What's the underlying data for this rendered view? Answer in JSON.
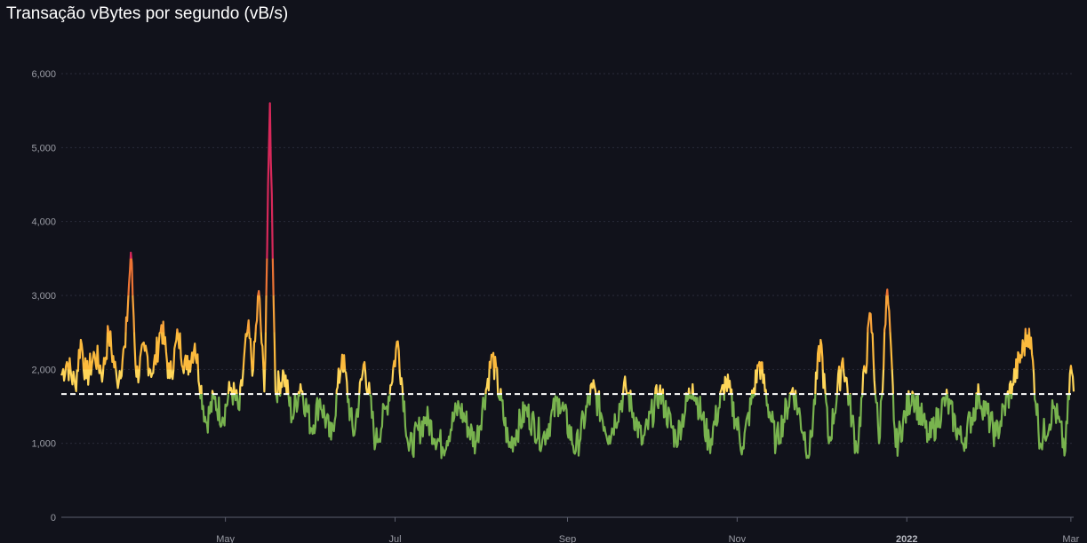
{
  "chart_data": {
    "type": "line",
    "title": "Transação vBytes por segundo (vB/s)",
    "xlabel": "",
    "ylabel": "",
    "ylim": [
      0,
      6000
    ],
    "yticks": [
      0,
      1000,
      2000,
      3000,
      4000,
      5000,
      6000
    ],
    "ytick_labels": [
      "0",
      "1,000",
      "2,000",
      "3,000",
      "4,000",
      "5,000",
      "6,000"
    ],
    "xlim": [
      "2021-03-03",
      "2022-03-02"
    ],
    "xticks": [
      {
        "date": "2021-05-01",
        "label": "May",
        "bold": false
      },
      {
        "date": "2021-07-01",
        "label": "Jul",
        "bold": false
      },
      {
        "date": "2021-09-01",
        "label": "Sep",
        "bold": false
      },
      {
        "date": "2021-11-01",
        "label": "Nov",
        "bold": false
      },
      {
        "date": "2022-01-01",
        "label": "2022",
        "bold": true
      },
      {
        "date": "2022-03-01",
        "label": "Mar",
        "bold": false
      }
    ],
    "reference_line": {
      "value": 1667,
      "style": "dashed",
      "color": "#ffffff"
    },
    "color_bands": [
      {
        "min": 0,
        "max": 1667,
        "color": "#78b34e"
      },
      {
        "min": 1667,
        "max": 2000,
        "color": "#ffd659"
      },
      {
        "min": 2000,
        "max": 2500,
        "color": "#fcba3d"
      },
      {
        "min": 2500,
        "max": 3000,
        "color": "#f9a33a"
      },
      {
        "min": 3000,
        "max": 3500,
        "color": "#ee7434"
      },
      {
        "min": 3500,
        "max": 7000,
        "color": "#d8285a"
      }
    ],
    "grid": true,
    "series": [
      {
        "points": [
          [
            "2021-03-03",
            1920
          ],
          [
            "2021-03-05",
            2100
          ],
          [
            "2021-03-08",
            1780
          ],
          [
            "2021-03-10",
            2400
          ],
          [
            "2021-03-12",
            1880
          ],
          [
            "2021-03-15",
            2200
          ],
          [
            "2021-03-18",
            1950
          ],
          [
            "2021-03-20",
            2500
          ],
          [
            "2021-03-23",
            1850
          ],
          [
            "2021-03-26",
            2300
          ],
          [
            "2021-03-28",
            3580
          ],
          [
            "2021-03-30",
            1900
          ],
          [
            "2021-04-02",
            2250
          ],
          [
            "2021-04-05",
            1950
          ],
          [
            "2021-04-08",
            2600
          ],
          [
            "2021-04-11",
            1880
          ],
          [
            "2021-04-14",
            2450
          ],
          [
            "2021-04-17",
            2000
          ],
          [
            "2021-04-20",
            2350
          ],
          [
            "2021-04-24",
            1280
          ],
          [
            "2021-04-27",
            1600
          ],
          [
            "2021-04-30",
            1350
          ],
          [
            "2021-05-03",
            1750
          ],
          [
            "2021-05-06",
            1450
          ],
          [
            "2021-05-09",
            2550
          ],
          [
            "2021-05-11",
            2000
          ],
          [
            "2021-05-13",
            3060
          ],
          [
            "2021-05-15",
            1700
          ],
          [
            "2021-05-17",
            5600
          ],
          [
            "2021-05-19",
            1700
          ],
          [
            "2021-05-22",
            1950
          ],
          [
            "2021-05-25",
            1350
          ],
          [
            "2021-05-28",
            1800
          ],
          [
            "2021-06-01",
            1200
          ],
          [
            "2021-06-04",
            1600
          ],
          [
            "2021-06-08",
            1050
          ],
          [
            "2021-06-12",
            2200
          ],
          [
            "2021-06-16",
            1100
          ],
          [
            "2021-06-20",
            2100
          ],
          [
            "2021-06-24",
            1000
          ],
          [
            "2021-06-28",
            1500
          ],
          [
            "2021-07-02",
            2380
          ],
          [
            "2021-07-06",
            900
          ],
          [
            "2021-07-12",
            1350
          ],
          [
            "2021-07-18",
            950
          ],
          [
            "2021-07-24",
            1500
          ],
          [
            "2021-07-30",
            1000
          ],
          [
            "2021-08-05",
            2180
          ],
          [
            "2021-08-11",
            950
          ],
          [
            "2021-08-17",
            1450
          ],
          [
            "2021-08-23",
            1050
          ],
          [
            "2021-08-29",
            1600
          ],
          [
            "2021-09-04",
            900
          ],
          [
            "2021-09-10",
            1750
          ],
          [
            "2021-09-16",
            1100
          ],
          [
            "2021-09-22",
            1750
          ],
          [
            "2021-09-28",
            1000
          ],
          [
            "2021-10-04",
            1700
          ],
          [
            "2021-10-10",
            1050
          ],
          [
            "2021-10-16",
            1800
          ],
          [
            "2021-10-22",
            1000
          ],
          [
            "2021-10-28",
            1850
          ],
          [
            "2021-11-03",
            950
          ],
          [
            "2021-11-09",
            2100
          ],
          [
            "2021-11-15",
            1000
          ],
          [
            "2021-11-21",
            1750
          ],
          [
            "2021-11-27",
            850
          ],
          [
            "2021-12-01",
            2400
          ],
          [
            "2021-12-04",
            1000
          ],
          [
            "2021-12-09",
            2150
          ],
          [
            "2021-12-14",
            900
          ],
          [
            "2021-12-19",
            2750
          ],
          [
            "2021-12-22",
            1000
          ],
          [
            "2021-12-25",
            3080
          ],
          [
            "2021-12-28",
            950
          ],
          [
            "2022-01-03",
            1700
          ],
          [
            "2022-01-09",
            1050
          ],
          [
            "2022-01-15",
            1600
          ],
          [
            "2022-01-21",
            1000
          ],
          [
            "2022-01-27",
            1650
          ],
          [
            "2022-02-02",
            1100
          ],
          [
            "2022-02-08",
            1800
          ],
          [
            "2022-02-14",
            2550
          ],
          [
            "2022-02-18",
            1000
          ],
          [
            "2022-02-23",
            1500
          ],
          [
            "2022-02-27",
            900
          ],
          [
            "2022-03-01",
            2050
          ],
          [
            "2022-03-02",
            1700
          ]
        ]
      }
    ]
  }
}
